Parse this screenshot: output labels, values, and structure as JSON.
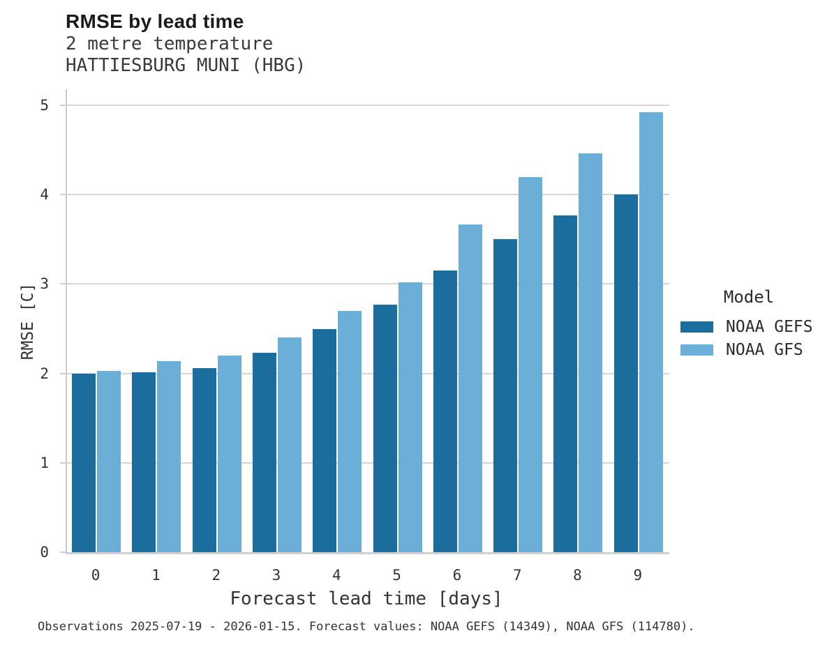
{
  "header": {
    "title": "RMSE by lead time",
    "subtitle_line1": "2 metre temperature",
    "subtitle_line2": "HATTIESBURG MUNI (HBG)"
  },
  "chart_data": {
    "type": "bar",
    "categories": [
      "0",
      "1",
      "2",
      "3",
      "4",
      "5",
      "6",
      "7",
      "8",
      "9"
    ],
    "series": [
      {
        "name": "NOAA GEFS",
        "color": "#1b6d9d",
        "values": [
          2.0,
          2.01,
          2.06,
          2.23,
          2.5,
          2.77,
          3.15,
          3.5,
          3.77,
          4.0
        ]
      },
      {
        "name": "NOAA GFS",
        "color": "#6bafd8",
        "values": [
          2.03,
          2.14,
          2.2,
          2.4,
          2.7,
          3.02,
          3.67,
          4.2,
          4.46,
          4.92
        ]
      }
    ],
    "title": "RMSE by lead time",
    "xlabel": "Forecast lead time [days]",
    "ylabel": "RMSE [C]",
    "ylim": [
      0,
      5
    ],
    "yticks": [
      0,
      1,
      2,
      3,
      4,
      5
    ],
    "grid": true,
    "legend_title": "Model",
    "legend_position": "center-right"
  },
  "footer": {
    "caption": "Observations 2025-07-19 - 2026-01-15. Forecast values: NOAA GEFS (14349), NOAA GFS (114780)."
  },
  "colors": {
    "gridline": "#d5d5d5",
    "spine": "#cccccc",
    "text_primary": "#1a1a1a",
    "text_secondary": "#333333"
  }
}
